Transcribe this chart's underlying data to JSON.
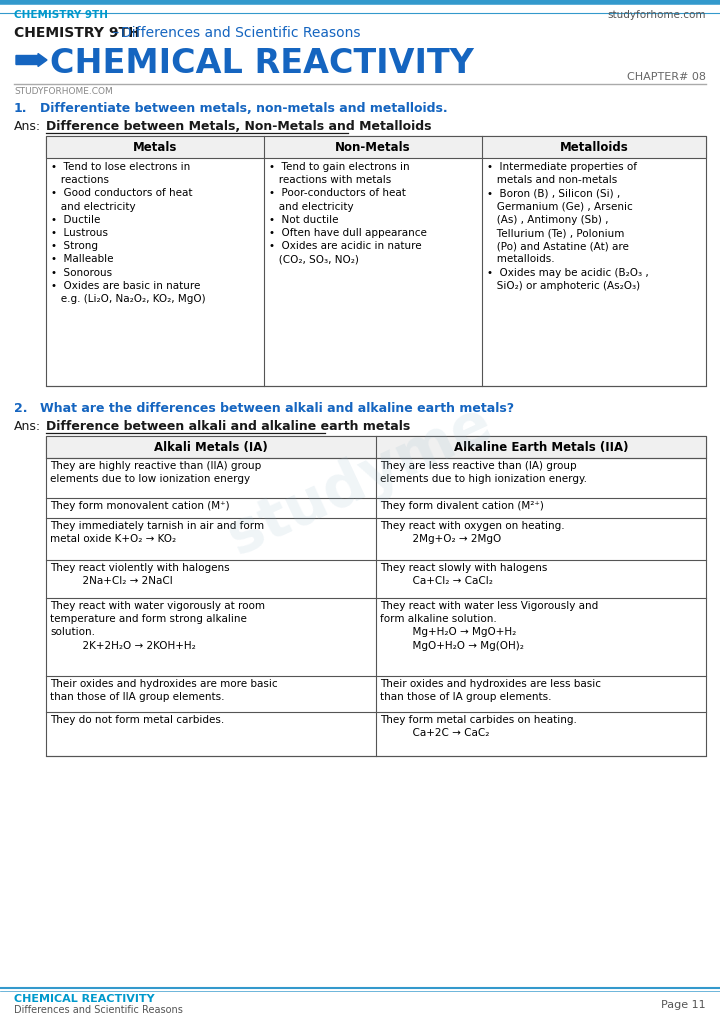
{
  "bg_color": "#ffffff",
  "border_color": "#3399cc",
  "header_top_left": "CHEMISTRY 9TH",
  "header_top_right": "studyforhome.com",
  "title_black": "CHEMISTRY 9TH",
  "title_dash": " – ",
  "title_blue": "Differences and Scientific Reasons",
  "main_title": "CHEMICAL REACTIVITY",
  "chapter": "CHAPTER# 08",
  "subtitle_small": "STUDYFORHOME.COM",
  "q1_num": "1.",
  "q1_text": "Differentiate between metals, non-metals and metalloids.",
  "ans1_label": "Ans:",
  "ans1_title": "Difference between Metals, Non-Metals and Metalloids",
  "table1_headers": [
    "Metals",
    "Non-Metals",
    "Metalloids"
  ],
  "q2_num": "2.",
  "q2_text": "What are the differences between alkali and alkaline earth metals?",
  "ans2_label": "Ans:",
  "ans2_title": "Difference between alkali and alkaline earth metals",
  "table2_headers": [
    "Alkali Metals (IA)",
    "Alkaline Earth Metals (IIA)"
  ],
  "footer_left_title": "CHEMICAL REACTIVITY",
  "footer_left_sub": "Differences and Scientific Reasons",
  "footer_right": "Page 11",
  "blue_color": "#1565C0",
  "teal_color": "#0099cc",
  "table_border": "#555555"
}
